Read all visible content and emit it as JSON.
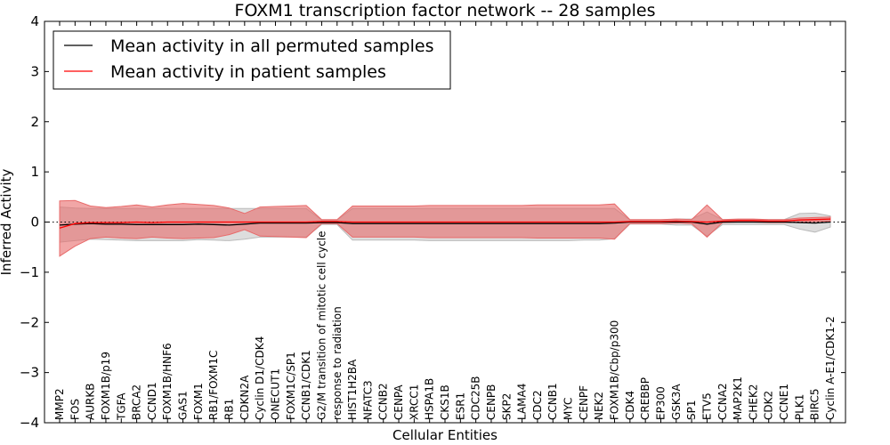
{
  "chart_data": {
    "type": "line",
    "title": "FOXM1 transcription factor network -- 28 samples",
    "xlabel": "Cellular Entities",
    "ylabel": "Inferred Activity",
    "ylim": [
      -4,
      4
    ],
    "yticks": [
      -4,
      -3,
      -2,
      -1,
      0,
      1,
      2,
      3,
      4
    ],
    "ytick_labels": [
      "−4",
      "−3",
      "−2",
      "−1",
      "0",
      "1",
      "2",
      "3",
      "4"
    ],
    "grid": false,
    "legend_position": "top-left",
    "categories": [
      "MMP2",
      "FOS",
      "AURKB",
      "FOXM1B/p19",
      "TGFA",
      "BRCA2",
      "CCND1",
      "FOXM1B/HNF6",
      "GAS1",
      "FOXM1",
      "RB1/FOXM1C",
      "RB1",
      "CDKN2A",
      "Cyclin D1/CDK4",
      "ONECUT1",
      "FOXM1C/SP1",
      "CCNB1/CDK1",
      "G2/M transition of mitotic cell cycle",
      "response to radiation",
      "HIST1H2BA",
      "NFATC3",
      "CCNB2",
      "CENPA",
      "XRCC1",
      "HSPA1B",
      "CKS1B",
      "ESR1",
      "CDC25B",
      "CENPB",
      "SKP2",
      "LAMA4",
      "CDC2",
      "CCNB1",
      "MYC",
      "CENPF",
      "NEK2",
      "FOXM1B/Cbp/p300",
      "CDK4",
      "CREBBP",
      "EP300",
      "GSK3A",
      "SP1",
      "ETV5",
      "CCNA2",
      "MAP2K1",
      "CHEK2",
      "CDK2",
      "CCNE1",
      "PLK1",
      "BIRC5",
      "Cyclin A-E1/CDK1-2"
    ],
    "series": [
      {
        "name": "Mean activity in all permuted samples",
        "color": "#000000",
        "fill_color": "#bbbbbb",
        "values": [
          -0.06,
          -0.04,
          -0.03,
          -0.04,
          -0.04,
          -0.05,
          -0.05,
          -0.05,
          -0.05,
          -0.04,
          -0.05,
          -0.06,
          -0.04,
          -0.02,
          -0.02,
          -0.02,
          -0.02,
          -0.01,
          -0.01,
          -0.03,
          -0.03,
          -0.03,
          -0.03,
          -0.03,
          -0.03,
          -0.03,
          -0.03,
          -0.03,
          -0.03,
          -0.03,
          -0.03,
          -0.03,
          -0.03,
          -0.03,
          -0.03,
          -0.03,
          -0.02,
          0.0,
          0.0,
          0.0,
          0.0,
          0.0,
          -0.04,
          0.0,
          0.0,
          0.0,
          0.0,
          0.0,
          -0.01,
          -0.02,
          0.0
        ],
        "upper": [
          0.3,
          0.28,
          0.27,
          0.27,
          0.27,
          0.27,
          0.27,
          0.27,
          0.27,
          0.27,
          0.27,
          0.27,
          0.27,
          0.27,
          0.27,
          0.27,
          0.27,
          0.04,
          0.04,
          0.27,
          0.27,
          0.27,
          0.27,
          0.27,
          0.27,
          0.27,
          0.27,
          0.27,
          0.27,
          0.27,
          0.27,
          0.27,
          0.27,
          0.27,
          0.27,
          0.27,
          0.27,
          0.04,
          0.04,
          0.04,
          0.06,
          0.06,
          0.2,
          0.05,
          0.05,
          0.05,
          0.05,
          0.05,
          0.17,
          0.18,
          0.12
        ],
        "lower": [
          -0.4,
          -0.37,
          -0.34,
          -0.35,
          -0.36,
          -0.37,
          -0.37,
          -0.37,
          -0.37,
          -0.35,
          -0.36,
          -0.37,
          -0.34,
          -0.3,
          -0.3,
          -0.3,
          -0.3,
          -0.05,
          -0.05,
          -0.36,
          -0.36,
          -0.36,
          -0.36,
          -0.36,
          -0.37,
          -0.37,
          -0.37,
          -0.37,
          -0.37,
          -0.37,
          -0.37,
          -0.37,
          -0.37,
          -0.37,
          -0.36,
          -0.36,
          -0.33,
          -0.04,
          -0.04,
          -0.04,
          -0.06,
          -0.06,
          -0.28,
          -0.05,
          -0.05,
          -0.05,
          -0.05,
          -0.05,
          -0.14,
          -0.2,
          -0.1
        ]
      },
      {
        "name": "Mean activity in patient samples",
        "color": "#ff0000",
        "fill_color": "#e86a6a",
        "values": [
          -0.12,
          -0.03,
          -0.01,
          -0.01,
          -0.01,
          0.0,
          -0.01,
          0.0,
          0.0,
          0.0,
          0.0,
          0.0,
          0.0,
          0.0,
          0.0,
          0.0,
          0.0,
          0.01,
          0.01,
          0.0,
          0.0,
          0.0,
          0.0,
          0.0,
          0.0,
          0.0,
          0.0,
          0.0,
          0.0,
          0.0,
          0.0,
          0.0,
          0.0,
          0.0,
          0.0,
          0.0,
          0.0,
          0.01,
          0.01,
          0.01,
          0.02,
          0.01,
          0.0,
          0.02,
          0.03,
          0.03,
          0.02,
          0.02,
          0.04,
          0.05,
          0.06
        ],
        "upper": [
          0.42,
          0.43,
          0.32,
          0.29,
          0.31,
          0.34,
          0.3,
          0.34,
          0.37,
          0.35,
          0.33,
          0.28,
          0.17,
          0.3,
          0.31,
          0.32,
          0.33,
          0.05,
          0.05,
          0.32,
          0.32,
          0.32,
          0.32,
          0.32,
          0.33,
          0.33,
          0.33,
          0.33,
          0.33,
          0.33,
          0.33,
          0.34,
          0.34,
          0.34,
          0.34,
          0.34,
          0.36,
          0.05,
          0.05,
          0.05,
          0.06,
          0.05,
          0.34,
          0.05,
          0.06,
          0.06,
          0.05,
          0.05,
          0.08,
          0.09,
          0.1
        ],
        "lower": [
          -0.68,
          -0.48,
          -0.33,
          -0.3,
          -0.32,
          -0.33,
          -0.3,
          -0.32,
          -0.33,
          -0.32,
          -0.31,
          -0.25,
          -0.15,
          -0.28,
          -0.29,
          -0.3,
          -0.31,
          -0.03,
          -0.03,
          -0.3,
          -0.3,
          -0.3,
          -0.3,
          -0.3,
          -0.31,
          -0.31,
          -0.31,
          -0.31,
          -0.31,
          -0.31,
          -0.31,
          -0.32,
          -0.32,
          -0.32,
          -0.32,
          -0.32,
          -0.34,
          -0.03,
          -0.03,
          -0.03,
          -0.02,
          -0.03,
          -0.3,
          -0.01,
          0.0,
          0.0,
          -0.01,
          -0.01,
          0.0,
          0.01,
          0.02
        ]
      }
    ]
  }
}
